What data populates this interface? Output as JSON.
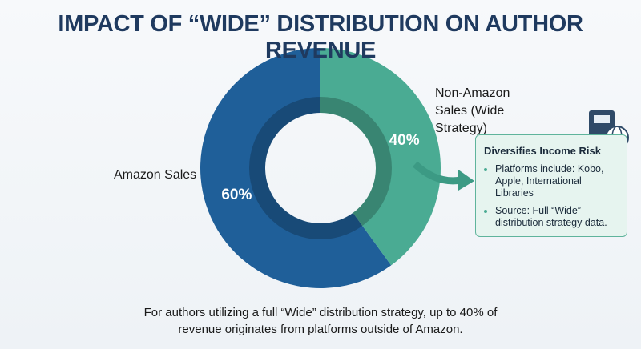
{
  "chart_data": {
    "type": "pie",
    "title": "IMPACT OF “WIDE” DISTRIBUTION ON AUTHOR REVENUE",
    "categories": [
      "Amazon Sales",
      "Non-Amazon Sales (Wide Strategy)"
    ],
    "values": [
      60,
      40
    ],
    "value_labels": [
      "60%",
      "40%"
    ],
    "colors": [
      "#1f5f99",
      "#4aab93"
    ],
    "annotation": {
      "title": "Diversifies Income Risk",
      "bullets": [
        "Platforms include: Kobo, Apple, International Libraries",
        "Source: Full “Wide” distribution strategy data."
      ]
    },
    "caption": "For authors utilizing a full “Wide” distribution strategy, up to 40% of revenue originates from platforms outside of Amazon."
  }
}
